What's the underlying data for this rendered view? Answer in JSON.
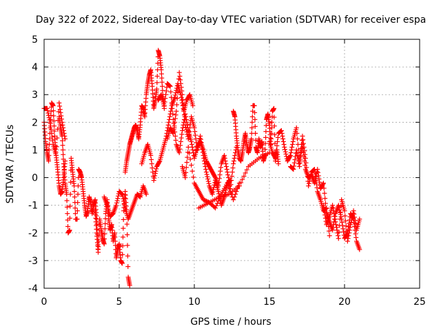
{
  "chart_data": {
    "type": "scatter",
    "title": "Day 322 of 2022, Sidereal Day-to-day VTEC variation (SDTVAR) for receiver espa",
    "xlabel": "GPS time / hours",
    "ylabel": "SDTVAR / TECUs",
    "xlim": [
      0,
      25
    ],
    "ylim": [
      -4,
      5
    ],
    "xticks": [
      0,
      5,
      10,
      15,
      20,
      25
    ],
    "yticks": [
      -4,
      -3,
      -2,
      -1,
      0,
      1,
      2,
      3,
      4,
      5
    ],
    "grid": true,
    "marker": "+",
    "marker_color": "#ff0000",
    "series": [
      {
        "name": "SDTVAR",
        "segments": [
          {
            "x": [
              0.0,
              0.1,
              0.2,
              0.3,
              0.4,
              0.5,
              0.6,
              0.7,
              0.8,
              0.9,
              1.0,
              1.1,
              1.2,
              1.3,
              1.4
            ],
            "y": [
              2.0,
              1.3,
              0.9,
              0.6,
              1.8,
              2.7,
              2.6,
              1.5,
              0.8,
              0.3,
              -0.3,
              -0.6,
              -0.5,
              0.0,
              0.6
            ]
          },
          {
            "x": [
              0.0,
              0.2,
              0.4,
              0.6,
              0.8,
              1.0,
              1.2,
              1.4
            ],
            "y": [
              2.5,
              2.5,
              2.0,
              1.2,
              0.8,
              2.7,
              2.0,
              1.4
            ]
          },
          {
            "x": [
              1.0,
              1.1,
              1.2,
              1.3,
              1.4,
              1.5,
              1.6,
              1.7,
              1.8,
              1.9,
              2.0,
              2.1,
              2.2,
              2.3,
              2.4,
              2.5,
              2.6,
              2.7,
              2.8,
              2.9,
              3.0,
              3.1,
              3.2,
              3.3,
              3.4,
              3.5,
              3.6
            ],
            "y": [
              2.2,
              1.8,
              1.5,
              0.5,
              -0.2,
              -0.6,
              -2.0,
              -1.9,
              0.7,
              0.2,
              -0.3,
              -1.5,
              -1.5,
              0.3,
              0.2,
              0.0,
              -0.5,
              -1.0,
              -1.4,
              -1.2,
              -0.7,
              -0.9,
              -1.3,
              -1.0,
              -0.8,
              -1.5,
              -2.6
            ]
          },
          {
            "x": [
              3.4,
              3.5,
              3.6,
              3.7,
              3.8,
              3.9,
              4.0,
              4.1,
              4.2,
              4.3,
              4.4,
              4.5,
              4.6,
              4.7,
              4.8,
              4.9,
              5.0,
              5.1,
              5.2,
              5.3,
              5.4,
              5.5,
              5.6,
              5.7
            ],
            "y": [
              -1.2,
              -2.0,
              -2.7,
              -1.5,
              -1.9,
              -2.2,
              -2.4,
              -1.3,
              -0.8,
              -1.5,
              -1.9,
              -1.7,
              -2.3,
              -2.0,
              -2.9,
              -2.6,
              -2.4,
              -3.0,
              -3.1,
              -1.2,
              -0.5,
              -1.3,
              -3.6,
              -3.9
            ]
          },
          {
            "x": [
              4.0,
              4.2,
              4.4,
              4.6,
              4.8,
              5.0,
              5.2,
              5.4,
              5.6,
              5.8,
              6.0,
              6.2,
              6.4,
              6.6,
              6.8
            ],
            "y": [
              -0.7,
              -1.0,
              -1.4,
              -1.3,
              -1.0,
              -0.5,
              -0.6,
              -1.1,
              -1.5,
              -1.2,
              -0.9,
              -0.6,
              -0.7,
              -0.3,
              -0.6
            ]
          },
          {
            "x": [
              5.4,
              5.5,
              5.6,
              5.7,
              5.8,
              5.9,
              6.0,
              6.1,
              6.2,
              6.3,
              6.4,
              6.5,
              6.6,
              6.7,
              6.8,
              6.9,
              7.0,
              7.1,
              7.2,
              7.3,
              7.4,
              7.5,
              7.6,
              7.7,
              7.8,
              7.9,
              8.0
            ],
            "y": [
              0.2,
              0.6,
              0.9,
              1.2,
              1.4,
              1.6,
              1.8,
              1.9,
              1.7,
              1.4,
              1.9,
              2.6,
              2.5,
              2.2,
              3.0,
              3.4,
              3.7,
              3.9,
              3.3,
              2.5,
              2.8,
              3.2,
              4.6,
              4.4,
              3.9,
              3.0,
              2.5
            ]
          },
          {
            "x": [
              6.5,
              6.7,
              6.9,
              7.1,
              7.3,
              7.5,
              7.7,
              7.9,
              8.1,
              8.3,
              8.5,
              8.7,
              8.9,
              9.1,
              9.3,
              9.5,
              9.7,
              9.9
            ],
            "y": [
              0.5,
              0.9,
              1.2,
              0.8,
              -0.1,
              0.4,
              0.6,
              1.0,
              1.4,
              2.0,
              2.6,
              2.9,
              3.4,
              3.0,
              2.4,
              2.8,
              3.0,
              2.6
            ]
          },
          {
            "x": [
              7.6,
              7.8,
              8.0,
              8.2,
              8.4,
              8.6,
              8.8,
              9.0,
              9.2,
              9.4,
              9.6,
              9.8,
              10.0,
              10.2,
              10.4,
              10.6,
              10.8,
              11.0,
              11.2,
              11.4,
              11.6,
              11.8,
              12.0,
              12.2,
              12.4,
              12.6,
              12.8
            ],
            "y": [
              2.8,
              3.0,
              2.6,
              3.4,
              3.3,
              2.1,
              1.2,
              0.9,
              1.7,
              2.3,
              1.7,
              1.3,
              0.7,
              1.1,
              1.3,
              1.0,
              0.6,
              0.4,
              0.2,
              0.0,
              -0.3,
              0.5,
              0.8,
              0.2,
              -0.4,
              0.5,
              1.1
            ]
          },
          {
            "x": [
              8.2,
              8.4,
              8.6,
              8.8,
              9.0,
              9.2,
              9.4,
              9.6,
              9.8,
              10.0,
              10.2,
              10.4,
              10.6,
              10.8,
              11.0,
              11.2,
              11.4,
              11.6,
              11.8,
              12.0,
              12.2,
              12.4
            ],
            "y": [
              1.4,
              1.8,
              1.6,
              2.4,
              3.8,
              3.0,
              1.9,
              1.4,
              2.2,
              1.8,
              1.0,
              1.5,
              0.8,
              0.2,
              -0.3,
              -0.6,
              -0.1,
              -0.5,
              -1.0,
              -0.7,
              -0.2,
              -0.1
            ]
          },
          {
            "x": [
              9.2,
              9.4,
              9.6,
              10.0,
              10.3,
              10.6,
              11.0,
              11.4,
              11.8,
              12.2,
              12.6,
              13.0
            ],
            "y": [
              0.4,
              0.0,
              1.1,
              -0.2,
              -0.5,
              -0.8,
              -0.9,
              -1.1,
              -0.6,
              -0.2,
              -0.8,
              -0.2
            ]
          },
          {
            "x": [
              12.6,
              12.7,
              12.8,
              12.9,
              13.0,
              13.1,
              13.2,
              13.3,
              13.4,
              13.5,
              13.6,
              13.7,
              13.8,
              13.9,
              14.0,
              14.1,
              14.2,
              14.3,
              14.4,
              14.5,
              14.6,
              14.7,
              14.8,
              14.9,
              15.0,
              15.1,
              15.2,
              15.3,
              15.4,
              15.5,
              15.6
            ],
            "y": [
              2.4,
              2.2,
              1.5,
              1.0,
              0.7,
              0.6,
              0.9,
              1.3,
              1.6,
              1.2,
              0.9,
              1.1,
              1.4,
              2.6,
              2.6,
              1.1,
              0.9,
              1.4,
              1.1,
              1.3,
              0.6,
              0.8,
              2.1,
              2.3,
              1.9,
              1.2,
              2.4,
              2.5,
              0.6,
              1.0,
              0.5
            ]
          },
          {
            "x": [
              15.0,
              15.2,
              15.4,
              15.6,
              15.8,
              16.0,
              16.2,
              16.4,
              16.6,
              16.8,
              17.0,
              17.2,
              17.4,
              17.6,
              17.8,
              18.0,
              18.2,
              18.4,
              18.6,
              18.8,
              19.0
            ],
            "y": [
              1.3,
              0.9,
              0.7,
              1.6,
              1.7,
              1.1,
              0.6,
              0.8,
              1.4,
              1.8,
              0.6,
              1.5,
              0.7,
              -0.3,
              0.2,
              0.3,
              -0.5,
              -0.8,
              -1.2,
              -1.1,
              -2.1
            ]
          },
          {
            "x": [
              16.4,
              16.6,
              16.8,
              17.0,
              17.2,
              17.4,
              17.6,
              17.8,
              18.0,
              18.2,
              18.4,
              18.6,
              18.8,
              19.0,
              19.2,
              19.4,
              19.6,
              19.8,
              20.0,
              20.2,
              20.4,
              20.6,
              20.8,
              21.0
            ],
            "y": [
              0.4,
              0.3,
              1.0,
              0.4,
              1.2,
              0.3,
              0.0,
              0.1,
              -0.2,
              0.3,
              -0.4,
              -0.2,
              -1.3,
              -1.6,
              -1.9,
              -1.3,
              -1.0,
              -1.5,
              -2.2,
              -2.0,
              -1.3,
              -1.5,
              -2.3,
              -2.6
            ]
          },
          {
            "x": [
              18.6,
              18.8,
              19.0,
              19.2,
              19.4,
              19.6,
              19.8,
              20.0,
              20.2,
              20.4,
              20.6,
              20.8,
              21.0
            ],
            "y": [
              -1.0,
              -1.7,
              -1.4,
              -1.0,
              -1.6,
              -2.2,
              -0.8,
              -1.2,
              -2.3,
              -1.7,
              -1.2,
              -1.9,
              -1.5
            ]
          },
          {
            "x": [
              10.3,
              11.0,
              11.7,
              12.3,
              13.0,
              13.6,
              14.3,
              15.0
            ],
            "y": [
              -1.1,
              -0.9,
              -0.7,
              -0.6,
              -0.3,
              0.4,
              0.7,
              0.9
            ]
          }
        ]
      }
    ]
  }
}
